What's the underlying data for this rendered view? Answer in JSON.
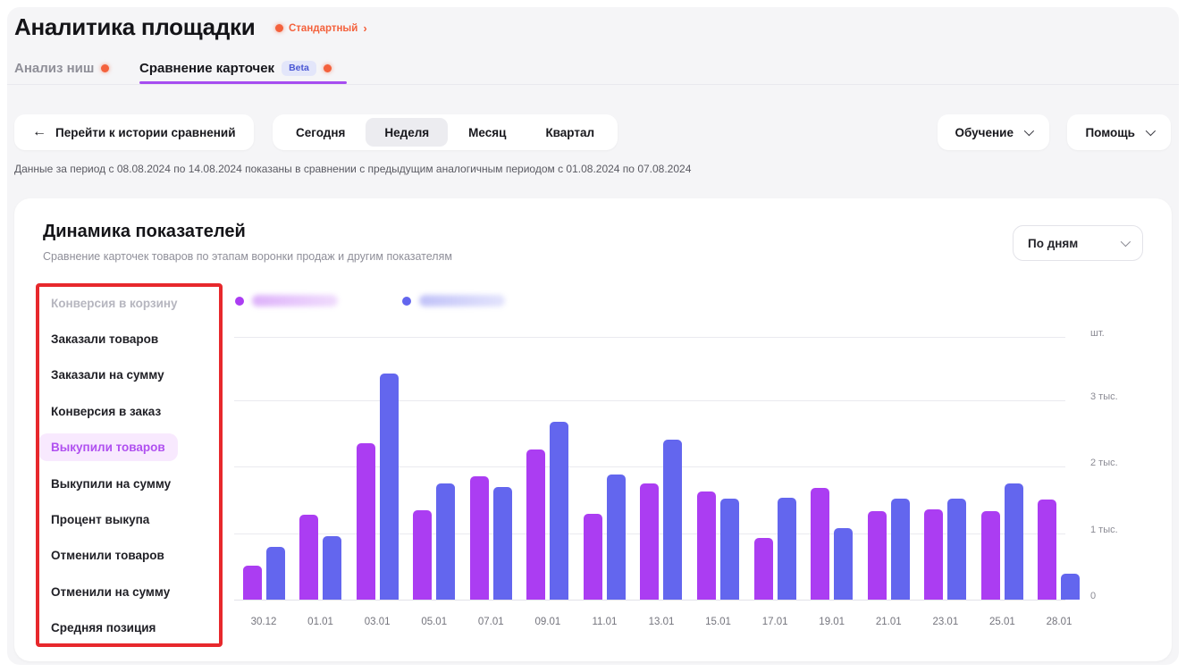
{
  "page": {
    "title": "Аналитика площадки",
    "plan_badge": {
      "label": "Стандартный"
    }
  },
  "icons": {
    "back_arrow": "←",
    "chevron_right": "›"
  },
  "tabs": [
    {
      "label": "Анализ ниш",
      "active": false,
      "notification_dot": true
    },
    {
      "label": "Сравнение карточек",
      "badge": "Beta",
      "active": true,
      "notification_dot": true
    }
  ],
  "toolbar": {
    "back_button": "Перейти к истории сравнений",
    "period_segments": [
      "Сегодня",
      "Неделя",
      "Месяц",
      "Квартал"
    ],
    "selected_segment": "Неделя",
    "training_button": "Обучение",
    "help_button": "Помощь"
  },
  "period_note": "Данные за период с 08.08.2024 по 14.08.2024 показаны в сравнении с предыдущим аналогичным периодом с 01.08.2024 по 07.08.2024",
  "card": {
    "title": "Динамика показателей",
    "subtitle": "Сравнение карточек товаров по этапам воронки продаж и другим показателям",
    "granularity_dropdown": "По дням"
  },
  "sidebar": {
    "items": [
      {
        "label": "Конверсия в корзину",
        "state": "disabled"
      },
      {
        "label": "Заказали товаров",
        "state": "default"
      },
      {
        "label": "Заказали на сумму",
        "state": "default"
      },
      {
        "label": "Конверсия в заказ",
        "state": "default"
      },
      {
        "label": "Выкупили товаров",
        "state": "selected"
      },
      {
        "label": "Выкупили на сумму",
        "state": "default"
      },
      {
        "label": "Процент выкупа",
        "state": "default"
      },
      {
        "label": "Отменили товаров",
        "state": "default"
      },
      {
        "label": "Отменили на сумму",
        "state": "default"
      },
      {
        "label": "Средняя позиция",
        "state": "default"
      }
    ]
  },
  "chart_data": {
    "type": "bar",
    "title": "Динамика показателей",
    "categories": [
      "30.12",
      "01.01",
      "03.01",
      "05.01",
      "07.01",
      "09.01",
      "11.01",
      "13.01",
      "15.01",
      "17.01",
      "19.01",
      "21.01",
      "23.01",
      "25.01",
      "28.01"
    ],
    "series": [
      {
        "name": "",
        "redacted": true,
        "color": "#ab3df2",
        "values": [
          510,
          1270,
          2350,
          1350,
          1850,
          2260,
          1290,
          1750,
          1630,
          930,
          1680,
          1330,
          1360,
          1330,
          1510
        ]
      },
      {
        "name": "",
        "redacted": true,
        "color": "#6366ee",
        "values": [
          790,
          960,
          3400,
          1750,
          1690,
          2680,
          1880,
          2400,
          1520,
          1530,
          1080,
          1520,
          1520,
          1750,
          390
        ]
      }
    ],
    "y_ticks": [
      {
        "label": "шт.",
        "value": 3950
      },
      {
        "label": "3 тыс.",
        "value": 3000
      },
      {
        "label": "2 тыс.",
        "value": 2000
      },
      {
        "label": "1 тыс.",
        "value": 1000
      },
      {
        "label": "0",
        "value": 0
      }
    ],
    "ylim": [
      0,
      3950
    ],
    "ylabel": "шт.",
    "grid": true,
    "legend_position": "top",
    "legend_redacted": true
  },
  "colors": {
    "accent_orange": "#f4613c",
    "series_purple": "#ab3df2",
    "series_blue": "#6366ee",
    "tab_underline": "#a64df0",
    "selected_metric_bg": "#f8e9fe",
    "selected_metric_text": "#b050f0",
    "annotation_red": "#e7282c"
  }
}
